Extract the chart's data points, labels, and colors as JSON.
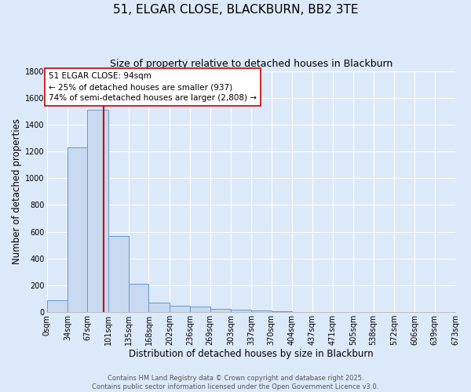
{
  "title_line1": "51, ELGAR CLOSE, BLACKBURN, BB2 3TE",
  "title_line2": "Size of property relative to detached houses in Blackburn",
  "xlabel": "Distribution of detached houses by size in Blackburn",
  "ylabel": "Number of detached properties",
  "bar_edges": [
    0,
    34,
    67,
    101,
    135,
    168,
    202,
    236,
    269,
    303,
    337,
    370,
    404,
    437,
    471,
    505,
    538,
    572,
    606,
    639,
    673
  ],
  "bar_heights": [
    90,
    1230,
    1510,
    570,
    210,
    70,
    50,
    40,
    25,
    20,
    10,
    5,
    2,
    1,
    1,
    0,
    0,
    0,
    0,
    0
  ],
  "bar_color": "#c9d9f0",
  "bar_edgecolor": "#6699cc",
  "background_color": "#dce9f8",
  "plot_bg_color": "#dce9f8",
  "grid_color": "#ffffff",
  "vline_x": 94,
  "vline_color": "#cc0000",
  "annotation_text": "51 ELGAR CLOSE: 94sqm\n← 25% of detached houses are smaller (937)\n74% of semi-detached houses are larger (2,808) →",
  "annotation_box_edgecolor": "#cc0000",
  "annotation_box_facecolor": "#ffffff",
  "ylim": [
    0,
    1800
  ],
  "yticks": [
    0,
    200,
    400,
    600,
    800,
    1000,
    1200,
    1400,
    1600,
    1800
  ],
  "footer_line1": "Contains HM Land Registry data © Crown copyright and database right 2025.",
  "footer_line2": "Contains public sector information licensed under the Open Government Licence v3.0.",
  "title_fontsize": 11,
  "subtitle_fontsize": 9,
  "axis_label_fontsize": 8.5,
  "tick_fontsize": 7,
  "annotation_fontsize": 7.5,
  "footer_fontsize": 6
}
